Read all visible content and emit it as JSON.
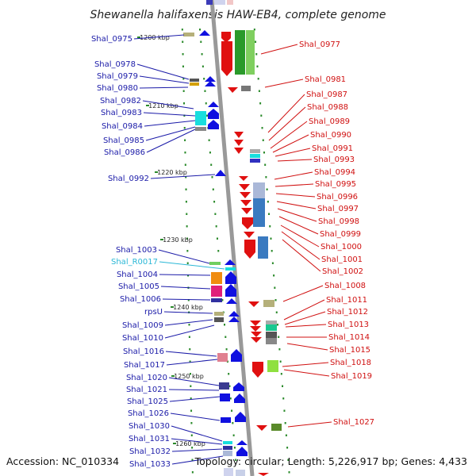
{
  "title": "Shewanella halifaxensis HAW-EB4, complete genome",
  "footer": {
    "accession": "Accession: NC_010334",
    "summary": "Topology: circular; Length: 5,226,917 bp; Genes: 4,433"
  },
  "scale": [
    "1200 kbp",
    "1210 kbp",
    "1220 kbp",
    "1230 kbp",
    "1240 kbp",
    "1250 kbp",
    "1260 kbp"
  ],
  "left_labels": [
    "Shal_0975",
    "Shal_0978",
    "Shal_0979",
    "Shal_0980",
    "Shal_0982",
    "Shal_0983",
    "Shal_0984",
    "Shal_0985",
    "Shal_0986",
    "Shal_0992",
    "Shal_1003",
    "Shal_R0017",
    "Shal_1004",
    "Shal_1005",
    "Shal_1006",
    "rpsU",
    "Shal_1009",
    "Shal_1010",
    "Shal_1016",
    "Shal_1017",
    "Shal_1020",
    "Shal_1021",
    "Shal_1025",
    "Shal_1026",
    "Shal_1030",
    "Shal_1031",
    "Shal_1032",
    "Shal_1033"
  ],
  "right_labels": [
    "Shal_0977",
    "Shal_0981",
    "Shal_0987",
    "Shal_0988",
    "Shal_0989",
    "Shal_0990",
    "Shal_0991",
    "Shal_0993",
    "Shal_0994",
    "Shal_0995",
    "Shal_0996",
    "Shal_0997",
    "Shal_0998",
    "Shal_0999",
    "Shal_1000",
    "Shal_1001",
    "Shal_1002",
    "Shal_1008",
    "Shal_1011",
    "Shal_1012",
    "Shal_1013",
    "Shal_1014",
    "Shal_1015",
    "Shal_1018",
    "Shal_1019",
    "Shal_1027"
  ],
  "colors": {
    "left_label": "#1a1aa8",
    "rna_label": "#2ab7d6",
    "right_label": "#d01010",
    "backbone": "#999999",
    "tick": "#2a8a2a"
  }
}
